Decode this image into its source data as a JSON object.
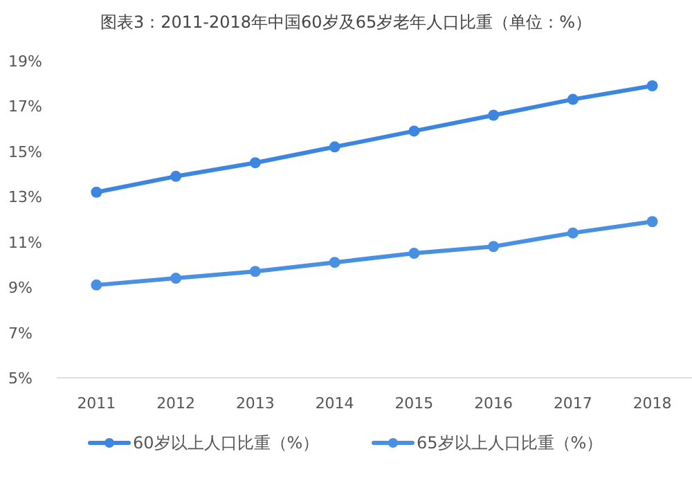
{
  "chart_data": {
    "type": "line",
    "title": "图表3：2011-2018年中国60岁及65岁老年人口比重（单位：%）",
    "categories": [
      "2011",
      "2012",
      "2013",
      "2014",
      "2015",
      "2016",
      "2017",
      "2018"
    ],
    "series": [
      {
        "name": "60岁以上人口比重（%）",
        "color": "#3c86e0",
        "values": [
          13.2,
          13.9,
          14.5,
          15.2,
          15.9,
          16.6,
          17.3,
          17.9
        ]
      },
      {
        "name": "65岁以上人口比重（%）",
        "color": "#4a90e2",
        "values": [
          9.1,
          9.4,
          9.7,
          10.1,
          10.5,
          10.8,
          11.4,
          11.9
        ]
      }
    ],
    "ylim": [
      5,
      19
    ],
    "yticks": [
      {
        "value": 5,
        "label": "5%"
      },
      {
        "value": 7,
        "label": "7%"
      },
      {
        "value": 9,
        "label": "9%"
      },
      {
        "value": 11,
        "label": "11%"
      },
      {
        "value": 13,
        "label": "13%"
      },
      {
        "value": 15,
        "label": "15%"
      },
      {
        "value": 17,
        "label": "17%"
      },
      {
        "value": 19,
        "label": "19%"
      }
    ],
    "grid": false,
    "legend": "bottom",
    "marker": "circle",
    "line_style": "solid"
  }
}
